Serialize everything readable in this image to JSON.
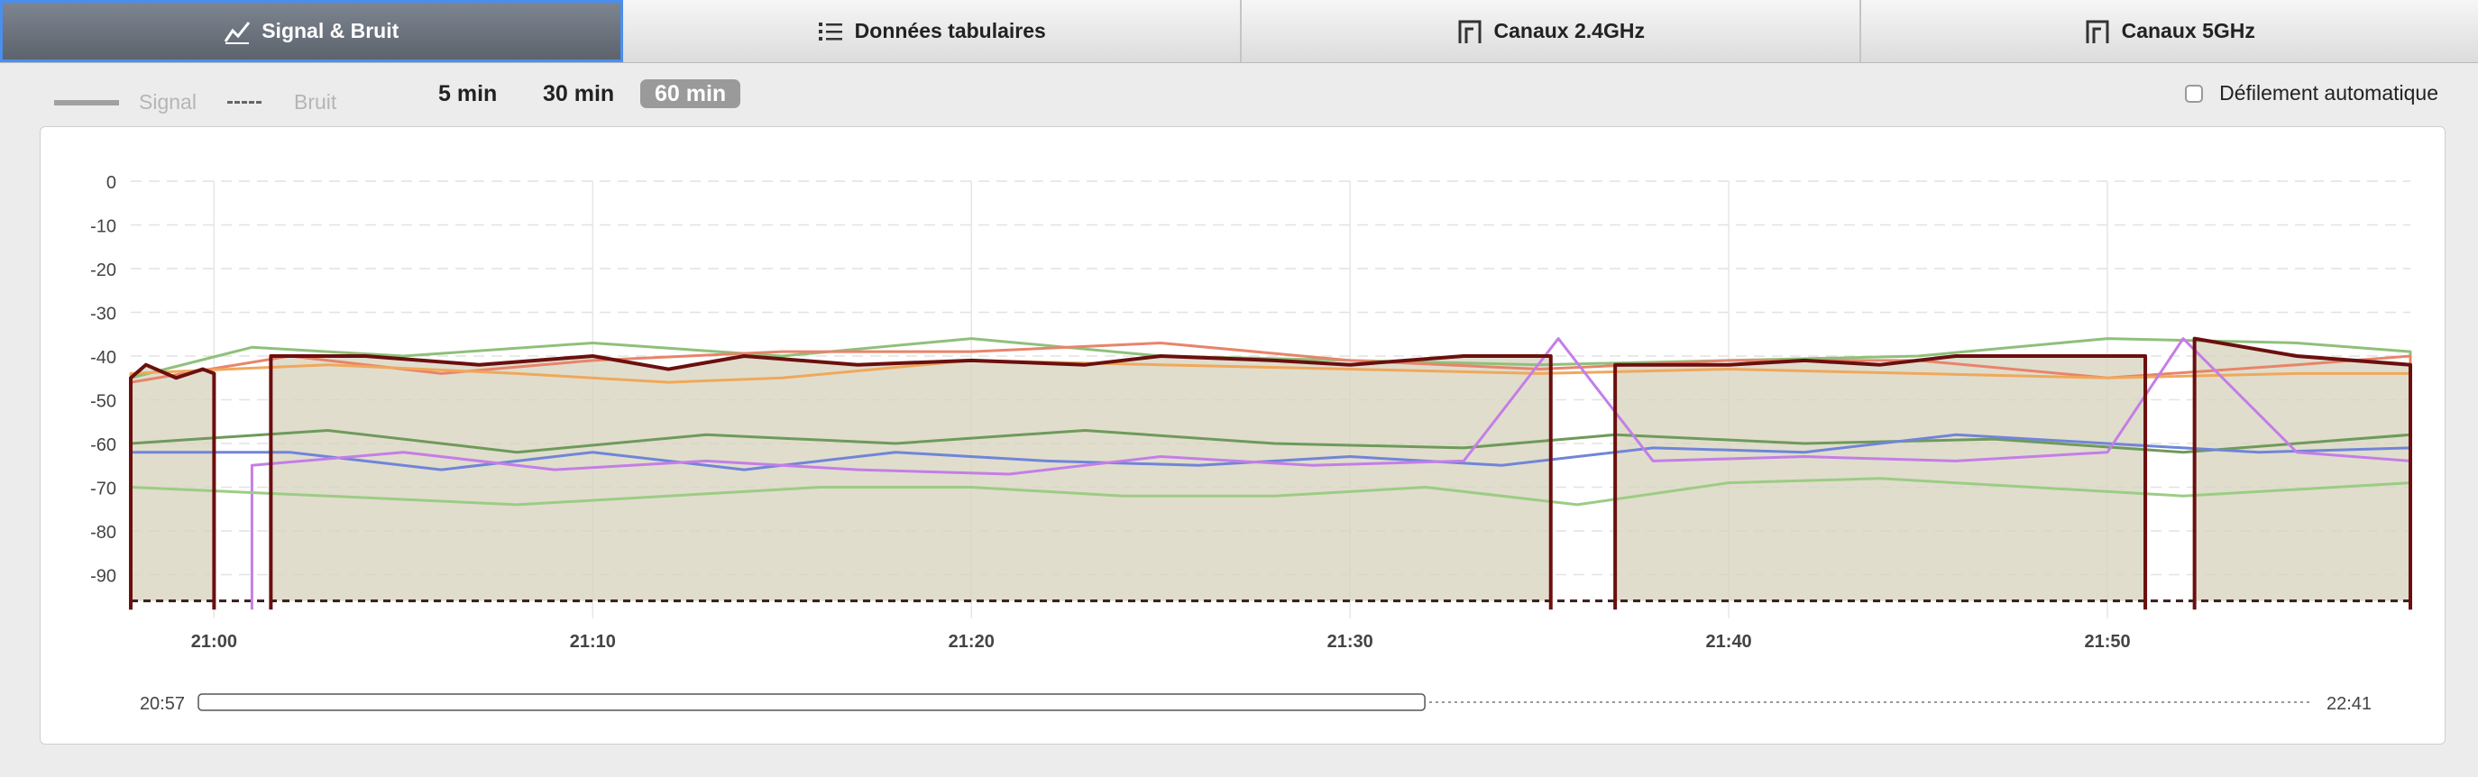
{
  "tabs": [
    {
      "label": "Signal & Bruit",
      "icon": "line-chart-icon",
      "active": true
    },
    {
      "label": "Données tabulaires",
      "icon": "list-icon",
      "active": false
    },
    {
      "label": "Canaux 2.4GHz",
      "icon": "channel-icon",
      "active": false
    },
    {
      "label": "Canaux 5GHz",
      "icon": "channel-icon",
      "active": false
    }
  ],
  "legend": {
    "signal": "Signal",
    "noise": "Bruit"
  },
  "time_ranges": [
    {
      "label": "5 min",
      "selected": false
    },
    {
      "label": "30 min",
      "selected": false
    },
    {
      "label": "60 min",
      "selected": true
    }
  ],
  "autoscroll": {
    "label": "Défilement automatique",
    "checked": false
  },
  "timeline": {
    "start": "20:57",
    "end": "22:41",
    "window_start_fraction": 0.0,
    "window_end_fraction": 0.58
  },
  "chart_data": {
    "type": "line",
    "title": "",
    "xlabel": "",
    "ylabel": "",
    "ylim": [
      -100,
      0
    ],
    "y_ticks": [
      0,
      -10,
      -20,
      -30,
      -40,
      -50,
      -60,
      -70,
      -80,
      -90
    ],
    "x_tick_labels": [
      "21:00",
      "21:10",
      "21:20",
      "21:30",
      "21:40",
      "21:50"
    ],
    "x_range_minutes": [
      -2.2,
      58
    ],
    "grid": true,
    "noise_floor": -96,
    "series": [
      {
        "color": "#6b0f0f",
        "width": 4,
        "segments": [
          [
            [
              -2.2,
              -45
            ],
            [
              -1.8,
              -42
            ],
            [
              -1,
              -45
            ],
            [
              -0.3,
              -43
            ],
            [
              0,
              -44
            ]
          ],
          [
            [
              1.5,
              -40
            ],
            [
              4,
              -40
            ],
            [
              7,
              -42
            ],
            [
              10,
              -40
            ],
            [
              12,
              -43
            ],
            [
              14,
              -40
            ],
            [
              17,
              -42
            ],
            [
              20,
              -41
            ],
            [
              23,
              -42
            ],
            [
              25,
              -40
            ],
            [
              28,
              -41
            ],
            [
              30,
              -42
            ],
            [
              33,
              -40
            ],
            [
              35.3,
              -40
            ]
          ],
          [
            [
              37,
              -42
            ],
            [
              40,
              -42
            ],
            [
              42,
              -41
            ],
            [
              44,
              -42
            ],
            [
              46,
              -40
            ],
            [
              49,
              -40
            ],
            [
              51,
              -40
            ]
          ],
          [
            [
              52.3,
              -36
            ],
            [
              55,
              -40
            ],
            [
              58,
              -42
            ]
          ]
        ]
      },
      {
        "color": "#8fc07a",
        "width": 3,
        "segments": [
          [
            [
              -2.2,
              -45
            ],
            [
              1,
              -38
            ],
            [
              5,
              -40
            ],
            [
              10,
              -37
            ],
            [
              15,
              -40
            ],
            [
              20,
              -36
            ],
            [
              25,
              -40
            ],
            [
              30,
              -41
            ],
            [
              35,
              -42
            ],
            [
              40,
              -41
            ],
            [
              45,
              -40
            ],
            [
              50,
              -36
            ],
            [
              55,
              -37
            ],
            [
              58,
              -39
            ]
          ]
        ]
      },
      {
        "color": "#e8846a",
        "width": 3,
        "segments": [
          [
            [
              -2.2,
              -46
            ],
            [
              2,
              -40
            ],
            [
              6,
              -44
            ],
            [
              10,
              -41
            ],
            [
              15,
              -39
            ],
            [
              20,
              -39
            ],
            [
              25,
              -37
            ],
            [
              30,
              -41
            ],
            [
              35,
              -43
            ],
            [
              40,
              -41
            ],
            [
              45,
              -41
            ],
            [
              50,
              -45
            ],
            [
              55,
              -42
            ],
            [
              58,
              -40
            ]
          ]
        ]
      },
      {
        "color": "#f0a85a",
        "width": 3,
        "segments": [
          [
            [
              -2.2,
              -44
            ],
            [
              3,
              -42
            ],
            [
              8,
              -44
            ],
            [
              12,
              -46
            ],
            [
              15,
              -45
            ],
            [
              20,
              -41
            ],
            [
              25,
              -42
            ],
            [
              30,
              -43
            ],
            [
              35,
              -44
            ],
            [
              40,
              -43
            ],
            [
              45,
              -44
            ],
            [
              50,
              -45
            ],
            [
              55,
              -44
            ],
            [
              58,
              -44
            ]
          ]
        ]
      },
      {
        "color": "#6e9a5a",
        "width": 3,
        "segments": [
          [
            [
              -2.2,
              -60
            ],
            [
              3,
              -57
            ],
            [
              8,
              -62
            ],
            [
              13,
              -58
            ],
            [
              18,
              -60
            ],
            [
              23,
              -57
            ],
            [
              28,
              -60
            ],
            [
              33,
              -61
            ],
            [
              37,
              -58
            ],
            [
              42,
              -60
            ],
            [
              47,
              -59
            ],
            [
              52,
              -62
            ],
            [
              58,
              -58
            ]
          ]
        ]
      },
      {
        "color": "#7085d8",
        "width": 3,
        "segments": [
          [
            [
              -2.2,
              -62
            ],
            [
              2,
              -62
            ],
            [
              6,
              -66
            ],
            [
              10,
              -62
            ],
            [
              14,
              -66
            ],
            [
              18,
              -62
            ],
            [
              22,
              -64
            ],
            [
              26,
              -65
            ],
            [
              30,
              -63
            ],
            [
              34,
              -65
            ],
            [
              38,
              -61
            ],
            [
              42,
              -62
            ],
            [
              46,
              -58
            ],
            [
              50,
              -60
            ],
            [
              54,
              -62
            ],
            [
              58,
              -61
            ]
          ]
        ]
      },
      {
        "color": "#c47ee6",
        "width": 3,
        "segments": [
          [
            [
              1,
              -65
            ],
            [
              5,
              -62
            ],
            [
              9,
              -66
            ],
            [
              13,
              -64
            ],
            [
              17,
              -66
            ],
            [
              21,
              -67
            ],
            [
              25,
              -63
            ],
            [
              29,
              -65
            ],
            [
              33,
              -64
            ],
            [
              35.5,
              -36
            ],
            [
              38,
              -64
            ],
            [
              42,
              -63
            ],
            [
              46,
              -64
            ],
            [
              50,
              -62
            ],
            [
              52,
              -36
            ],
            [
              55,
              -62
            ],
            [
              58,
              -64
            ]
          ]
        ]
      },
      {
        "color": "#9ccc84",
        "width": 3,
        "segments": [
          [
            [
              -2.2,
              -70
            ],
            [
              3,
              -72
            ],
            [
              8,
              -74
            ],
            [
              12,
              -72
            ],
            [
              16,
              -70
            ],
            [
              20,
              -70
            ],
            [
              24,
              -72
            ],
            [
              28,
              -72
            ],
            [
              32,
              -70
            ],
            [
              36,
              -74
            ],
            [
              40,
              -69
            ],
            [
              44,
              -68
            ],
            [
              48,
              -70
            ],
            [
              52,
              -72
            ],
            [
              58,
              -69
            ]
          ]
        ]
      }
    ]
  }
}
